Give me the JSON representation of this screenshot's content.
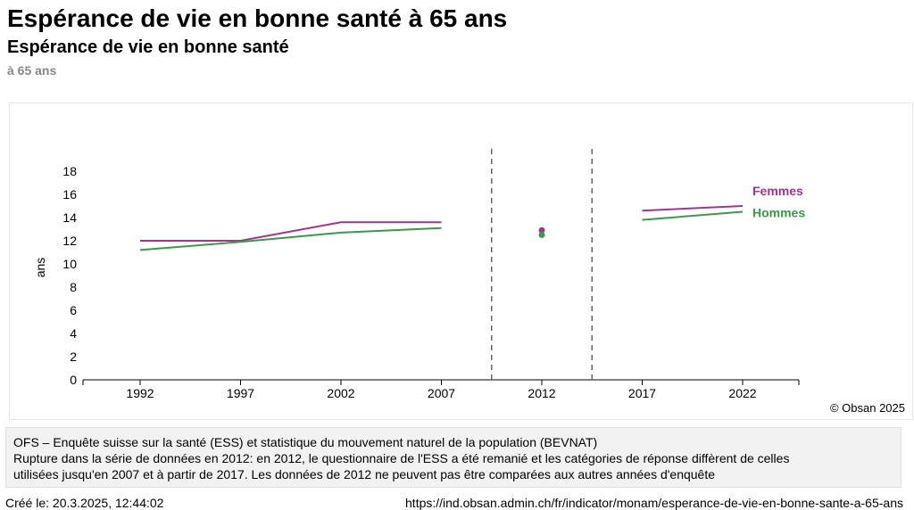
{
  "header": {
    "page_title": "Espérance de vie en bonne santé à 65 ans",
    "chart_title": "Espérance de vie en bonne santé",
    "chart_subtitle": "à 65 ans"
  },
  "chart_data": {
    "type": "line",
    "title": "Espérance de vie en bonne santé",
    "subtitle": "à 65 ans",
    "xlabel": "",
    "ylabel": "ans",
    "categories": [
      "1992",
      "1997",
      "2002",
      "2007",
      "2012",
      "2017",
      "2022"
    ],
    "ylim": [
      0,
      18
    ],
    "yticks": [
      0,
      2,
      4,
      6,
      8,
      10,
      12,
      14,
      16,
      18
    ],
    "series": [
      {
        "name": "Femmes",
        "color": "#a3348e",
        "values": [
          12.0,
          12.0,
          13.6,
          13.6,
          12.9,
          14.6,
          15.0
        ]
      },
      {
        "name": "Hommes",
        "color": "#3a9a4a",
        "values": [
          11.2,
          11.9,
          12.7,
          13.1,
          12.5,
          13.8,
          14.5
        ]
      }
    ],
    "segments": [
      [
        0,
        3
      ],
      [
        5,
        6
      ]
    ],
    "isolated_points": [
      4
    ],
    "break_years_between": [
      [
        "2007",
        "2012"
      ],
      [
        "2012",
        "2017"
      ]
    ],
    "legend": "right, inline labels",
    "grid": false
  },
  "credit": "© Obsan 2025",
  "source": {
    "line1": "OFS – Enquête suisse sur la santé (ESS) et statistique du mouvement naturel de la population (BEVNAT)",
    "line2": "Rupture dans la série de données en 2012: en 2012, le questionnaire de l'ESS a été remanié et les catégories de réponse diffèrent de celles",
    "line3": "utilisées jusqu'en 2007 et à partir de 2017. Les données de 2012 ne peuvent pas être comparées aux autres années d'enquête"
  },
  "footer": {
    "created": "Créé le: 20.3.2025, 12:44:02",
    "url": "https://ind.obsan.admin.ch/fr/indicator/monam/esperance-de-vie-en-bonne-sante-a-65-ans"
  }
}
